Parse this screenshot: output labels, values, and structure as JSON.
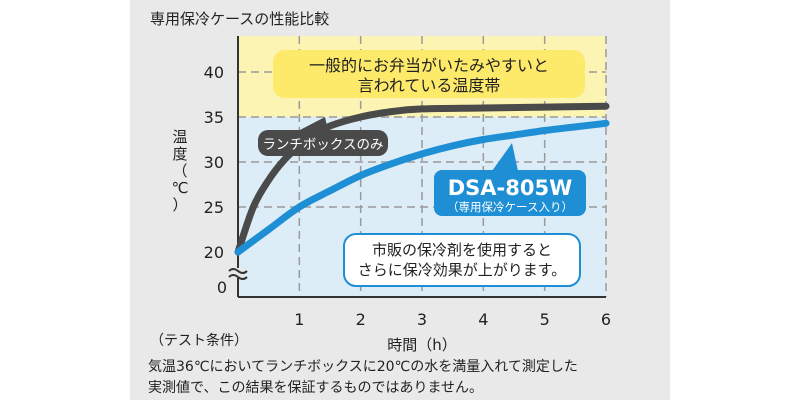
{
  "chart_data": {
    "type": "line",
    "title": "専用保冷ケースの性能比較",
    "xlabel": "時間（h）",
    "ylabel_chars": [
      "温",
      "度",
      "（",
      "℃",
      "）"
    ],
    "xlim": [
      0,
      6
    ],
    "ylim": [
      15,
      43
    ],
    "x_ticks": [
      0,
      1,
      2,
      3,
      4,
      5,
      6
    ],
    "y_ticks": [
      20,
      25,
      30,
      35,
      40
    ],
    "y_tick_labels": [
      "20",
      "25",
      "30",
      "35",
      "40"
    ],
    "x_tick_labels": [
      "0",
      "1",
      "2",
      "3",
      "4",
      "5",
      "6"
    ],
    "origin_label": "0",
    "axis_break": true,
    "grid": "dashed horizontal",
    "danger_zone": {
      "y_range": [
        35,
        43
      ],
      "label_lines": [
        "一般的にお弁当がいたみやすいと",
        "言われている温度帯"
      ],
      "color": "#fbf4b2",
      "label_bg": "#fde96a"
    },
    "below_zone_color": "#dcedf7",
    "series": [
      {
        "name": "ランチボックスのみ",
        "color": "#4a4a4a",
        "x": [
          0,
          0.25,
          0.5,
          0.75,
          1,
          1.25,
          1.5,
          2,
          2.5,
          3,
          4,
          5,
          6
        ],
        "y": [
          20,
          25,
          28,
          30.2,
          31.8,
          33,
          34,
          35,
          35.6,
          35.9,
          36,
          36.1,
          36.2
        ]
      },
      {
        "name": "DSA-805W",
        "sub_label": "（専用保冷ケース入り）",
        "color": "#1e8fd5",
        "x": [
          0,
          0.5,
          1,
          1.5,
          2,
          2.5,
          3,
          3.5,
          4,
          4.5,
          5,
          5.5,
          6
        ],
        "y": [
          20,
          22.5,
          25,
          26.8,
          28.5,
          29.8,
          30.9,
          31.8,
          32.5,
          33,
          33.5,
          33.9,
          34.3
        ]
      }
    ],
    "annotation": {
      "lines": [
        "市販の保冷剤を使用すると",
        "さらに保冷効果が上がります。"
      ],
      "border_color": "#1e8fd5"
    }
  },
  "conditions": {
    "heading": "（テスト条件）",
    "line1": "気温36℃においてランチボックスに20℃の水を満量入れて測定した",
    "line2": "実測値で、この結果を保証するものではありません。"
  }
}
